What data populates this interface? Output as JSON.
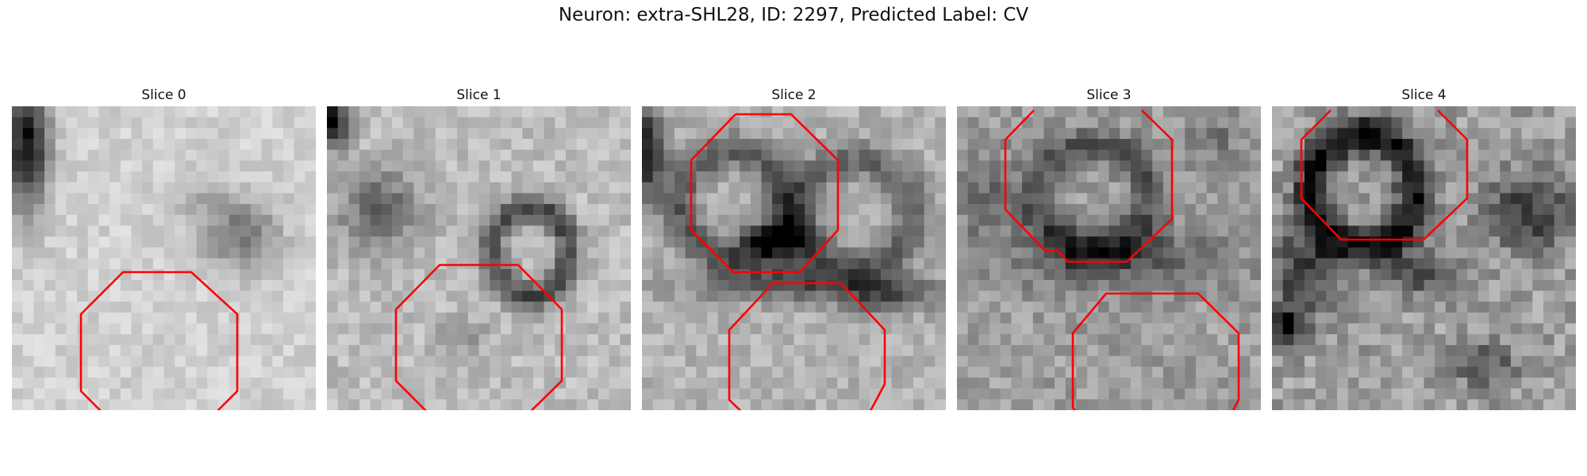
{
  "figure": {
    "title": "Neuron: extra-SHL28, ID: 2297, Predicted Label: CV"
  },
  "overlay_color": "#ff0000",
  "slices": [
    {
      "title": "Slice 0"
    },
    {
      "title": "Slice 1"
    },
    {
      "title": "Slice 2"
    },
    {
      "title": "Slice 3"
    },
    {
      "title": "Slice 4"
    }
  ]
}
